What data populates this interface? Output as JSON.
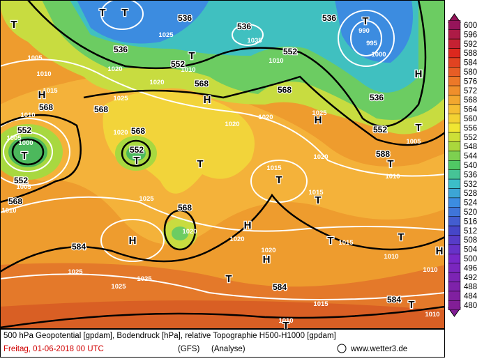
{
  "map": {
    "labels": [
      "536",
      "536",
      "536",
      "536",
      "536",
      "552",
      "552",
      "552",
      "552",
      "552",
      "552",
      "568",
      "568",
      "568",
      "568",
      "568",
      "568",
      "568",
      "588",
      "584",
      "584",
      "584",
      "1005",
      "1010",
      "1015",
      "1010",
      "1020",
      "1025",
      "1020",
      "1020",
      "1025",
      "1020",
      "1020",
      "1020",
      "1020",
      "1020",
      "1020",
      "1015",
      "1015",
      "1015",
      "1010",
      "1010",
      "1010",
      "1010",
      "1005",
      "1025",
      "1010",
      "1025",
      "1010",
      "1035",
      "990",
      "995",
      "1000",
      "1025",
      "1025",
      "1025",
      "1015",
      "1010",
      "1010",
      "1005",
      "1005",
      "1000",
      "T",
      "T",
      "T",
      "T",
      "T",
      "T",
      "T",
      "T",
      "T",
      "T",
      "T",
      "T",
      "T",
      "T",
      "T",
      "T",
      "T",
      "H",
      "H",
      "H",
      "H",
      "H",
      "H",
      "H",
      "H"
    ],
    "colorbar": [
      600,
      596,
      592,
      588,
      584,
      580,
      576,
      572,
      568,
      564,
      560,
      556,
      552,
      548,
      544,
      540,
      536,
      532,
      528,
      524,
      520,
      516,
      512,
      508,
      504,
      500,
      496,
      492,
      488,
      484,
      480
    ],
    "footer": {
      "description": "500 hPa Geopotential [gpdam], Bodendruck [hPa], relative Topographie H500-H1000 [gpdam]",
      "date": "Freitag, 01-06-2018  00 UTC",
      "model": "(GFS)",
      "run": "(Analyse)",
      "site": "www.wetter3.de"
    }
  }
}
